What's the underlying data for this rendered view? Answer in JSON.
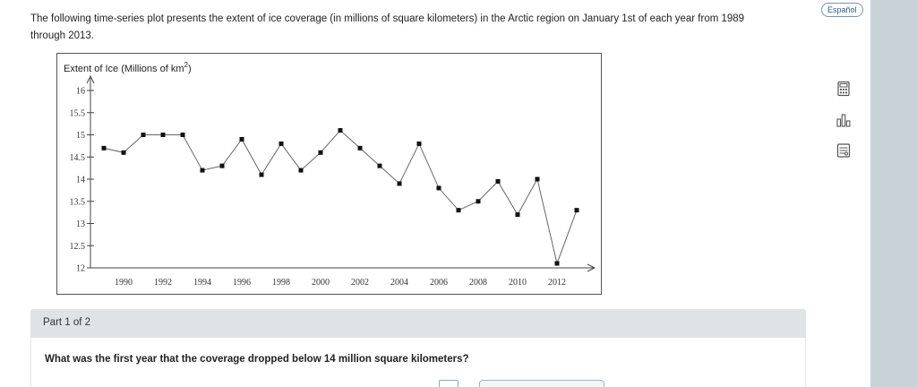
{
  "intro": {
    "text_line1": "The following time-series plot presents the extent of ice coverage (in millions of square kilometers) in the Arctic region on January 1st of each year from 1989",
    "text_line2": "through 2013."
  },
  "header": {
    "language_button": "Español"
  },
  "rail_icons": [
    "calculator-icon",
    "bar-chart-icon",
    "data-table-icon"
  ],
  "part": {
    "label": "Part 1 of 2",
    "question": "What was the first year that the coverage dropped below 14 million square kilometers?"
  },
  "chart_data": {
    "type": "line",
    "title": "Extent of Ice (Millions of km²)",
    "title_main": "Extent of Ice (Millions of km",
    "title_sup": "2",
    "title_end": ")",
    "xlabel": "",
    "ylabel": "",
    "ylim": [
      12,
      16
    ],
    "xlim": [
      1989,
      2013
    ],
    "y_ticks": [
      12,
      12.5,
      13,
      13.5,
      14,
      14.5,
      15,
      15.5,
      16
    ],
    "y_tick_labels": [
      "12",
      "12.5",
      "13",
      "13.5",
      "14",
      "14.5",
      "15",
      "15.5",
      "16"
    ],
    "x_ticks": [
      1990,
      1992,
      1994,
      1996,
      1998,
      2000,
      2002,
      2004,
      2006,
      2008,
      2010,
      2012
    ],
    "x_tick_labels": [
      "1990",
      "1992",
      "1994",
      "1996",
      "1998",
      "2000",
      "2002",
      "2004",
      "2006",
      "2008",
      "2010",
      "2012"
    ],
    "grid": false,
    "x": [
      1989,
      1990,
      1991,
      1992,
      1993,
      1994,
      1995,
      1996,
      1997,
      1998,
      1999,
      2000,
      2001,
      2002,
      2003,
      2004,
      2005,
      2006,
      2007,
      2008,
      2009,
      2010,
      2011,
      2012,
      2013
    ],
    "values": [
      14.7,
      14.6,
      15.0,
      15.0,
      15.0,
      14.2,
      14.3,
      14.9,
      14.1,
      14.8,
      14.2,
      14.6,
      15.1,
      14.7,
      14.3,
      13.9,
      14.8,
      13.8,
      13.3,
      13.5,
      13.95,
      13.2,
      14.0,
      12.1,
      13.3
    ]
  }
}
